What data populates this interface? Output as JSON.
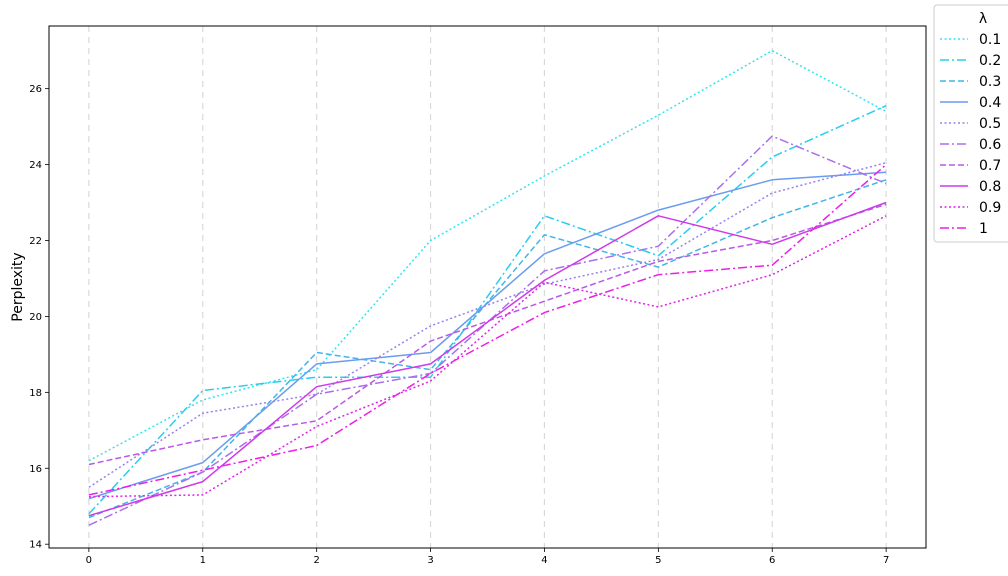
{
  "chart_data": {
    "type": "line",
    "title": "",
    "xlabel": "",
    "ylabel": "Perplexity",
    "x": [
      0,
      1,
      2,
      3,
      4,
      5,
      6,
      7
    ],
    "xticks": [
      "0",
      "1",
      "2",
      "3",
      "4",
      "5",
      "6",
      "7"
    ],
    "yticks": [
      "14",
      "16",
      "18",
      "20",
      "22",
      "24",
      "26"
    ],
    "xlim": [
      -0.35,
      7.35
    ],
    "ylim": [
      13.9,
      27.65
    ],
    "grid": "vertical dashed",
    "legend": {
      "title": "λ",
      "placement": "outside top-right"
    },
    "series": [
      {
        "name": "0.1",
        "color": "#2ee6f2",
        "dash": "dotted",
        "values": [
          16.2,
          17.8,
          18.6,
          22.0,
          23.7,
          25.3,
          27.0,
          25.4
        ]
      },
      {
        "name": "0.2",
        "color": "#29cdee",
        "dash": "dashdot",
        "values": [
          14.8,
          18.05,
          18.4,
          18.4,
          22.65,
          21.6,
          24.2,
          25.55
        ]
      },
      {
        "name": "0.3",
        "color": "#41b5e8",
        "dash": "dashed",
        "values": [
          14.7,
          15.9,
          19.05,
          18.6,
          22.15,
          21.3,
          22.6,
          23.6
        ]
      },
      {
        "name": "0.4",
        "color": "#6a9cef",
        "dash": "solid",
        "values": [
          15.2,
          16.15,
          18.75,
          19.05,
          21.65,
          22.8,
          23.6,
          23.8
        ]
      },
      {
        "name": "0.5",
        "color": "#9a80ee",
        "dash": "dotted",
        "values": [
          15.5,
          17.45,
          17.95,
          19.75,
          20.85,
          21.5,
          23.25,
          24.05
        ]
      },
      {
        "name": "0.6",
        "color": "#a870ec",
        "dash": "dashdot",
        "values": [
          14.5,
          15.9,
          17.95,
          18.5,
          21.2,
          21.85,
          24.75,
          23.5
        ]
      },
      {
        "name": "0.7",
        "color": "#b85ae8",
        "dash": "dashed",
        "values": [
          16.1,
          16.75,
          17.25,
          19.35,
          20.4,
          21.45,
          22.0,
          22.95
        ]
      },
      {
        "name": "0.8",
        "color": "#cf3ae8",
        "dash": "solid",
        "values": [
          14.75,
          15.65,
          18.15,
          18.75,
          20.95,
          22.65,
          21.9,
          23.0
        ]
      },
      {
        "name": "0.9",
        "color": "#e024e8",
        "dash": "dotted",
        "values": [
          15.25,
          15.3,
          17.1,
          18.3,
          20.9,
          20.25,
          21.1,
          22.65
        ]
      },
      {
        "name": "1",
        "color": "#ee1ee8",
        "dash": "dashdot",
        "values": [
          15.3,
          15.95,
          16.6,
          18.5,
          20.1,
          21.1,
          21.35,
          24.0
        ]
      }
    ]
  }
}
